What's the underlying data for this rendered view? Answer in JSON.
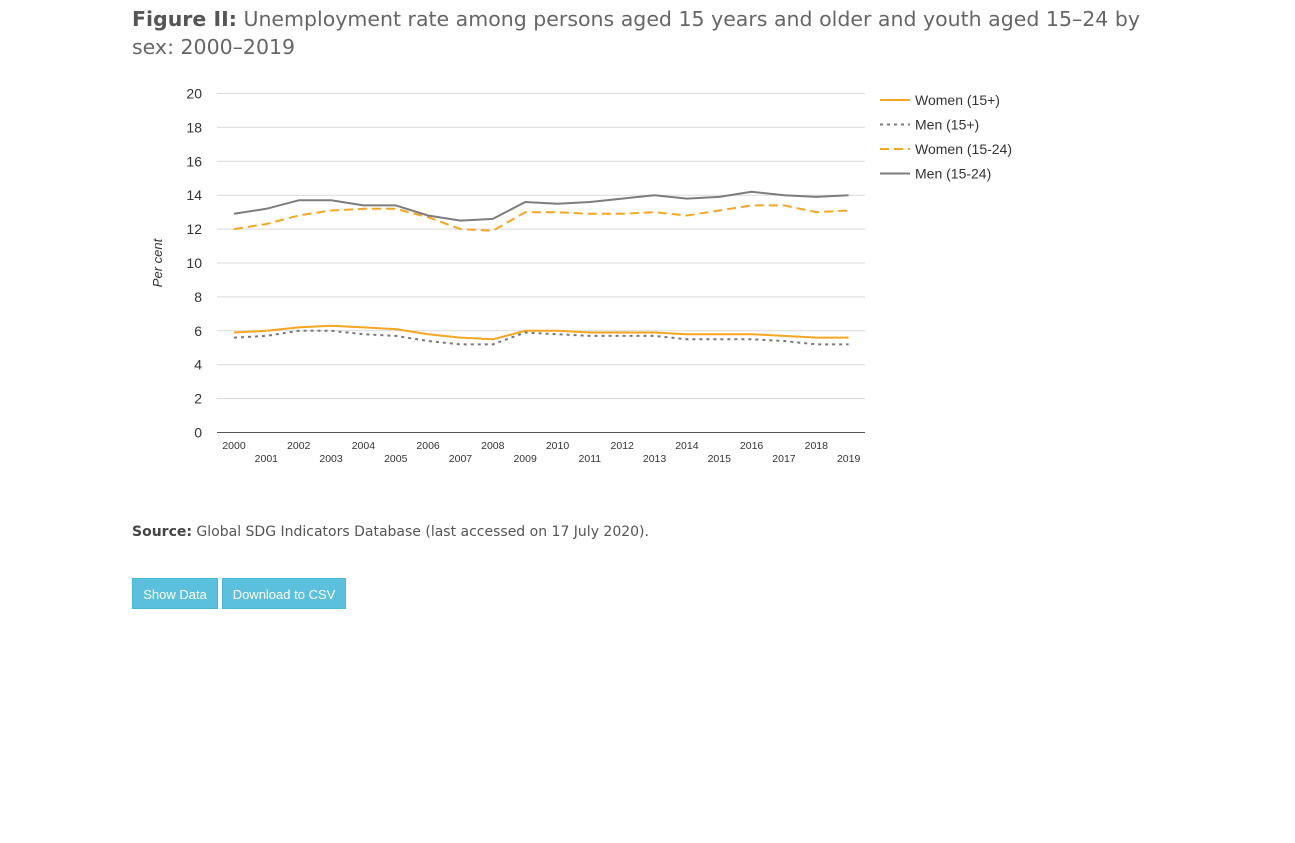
{
  "figure": {
    "title_lead": "Figure II:",
    "title_text": "Unemployment rate among persons aged 15 years and older and youth aged 15–24 by sex: 2000–2019"
  },
  "source": {
    "lead": "Source:",
    "text": "Global SDG Indicators Database (last accessed on 17 July 2020)."
  },
  "buttons": {
    "show_data": "Show Data",
    "download_csv": "Download to CSV"
  },
  "colors": {
    "orange": "#f5a623",
    "grey_dotted": "#777777",
    "grey_solid": "#7d7d7d",
    "grid": "#d9d9d9"
  },
  "chart_data": {
    "type": "line",
    "title": "",
    "xlabel": "",
    "ylabel": "Per cent",
    "ylim": [
      0,
      20
    ],
    "yticks": [
      0,
      2,
      4,
      6,
      8,
      10,
      12,
      14,
      16,
      18,
      20
    ],
    "grid": true,
    "legend_position": "top-right",
    "x": [
      "2000",
      "2001",
      "2002",
      "2003",
      "2004",
      "2005",
      "2006",
      "2007",
      "2008",
      "2009",
      "2010",
      "2011",
      "2012",
      "2013",
      "2014",
      "2015",
      "2016",
      "2017",
      "2018",
      "2019"
    ],
    "series": [
      {
        "name": "Women (15+)",
        "style": "solid",
        "color": "#f5a623",
        "values": [
          5.9,
          6.0,
          6.2,
          6.3,
          6.2,
          6.1,
          5.8,
          5.6,
          5.5,
          6.0,
          6.0,
          5.9,
          5.9,
          5.9,
          5.8,
          5.8,
          5.8,
          5.7,
          5.6,
          5.6
        ]
      },
      {
        "name": "Men (15+)",
        "style": "dotted",
        "color": "#777777",
        "values": [
          5.6,
          5.7,
          6.0,
          6.0,
          5.8,
          5.7,
          5.4,
          5.2,
          5.2,
          5.9,
          5.8,
          5.7,
          5.7,
          5.7,
          5.5,
          5.5,
          5.5,
          5.4,
          5.2,
          5.2
        ]
      },
      {
        "name": "Women (15-24)",
        "style": "dashed",
        "color": "#f5a623",
        "values": [
          12.0,
          12.3,
          12.8,
          13.1,
          13.2,
          13.2,
          12.7,
          12.0,
          11.9,
          13.0,
          13.0,
          12.9,
          12.9,
          13.0,
          12.8,
          13.1,
          13.4,
          13.4,
          13.0,
          13.1
        ]
      },
      {
        "name": "Men (15-24)",
        "style": "solid",
        "color": "#7d7d7d",
        "values": [
          12.9,
          13.2,
          13.7,
          13.7,
          13.4,
          13.4,
          12.8,
          12.5,
          12.6,
          13.6,
          13.5,
          13.6,
          13.8,
          14.0,
          13.8,
          13.9,
          14.2,
          14.0,
          13.9,
          14.0
        ]
      }
    ]
  }
}
